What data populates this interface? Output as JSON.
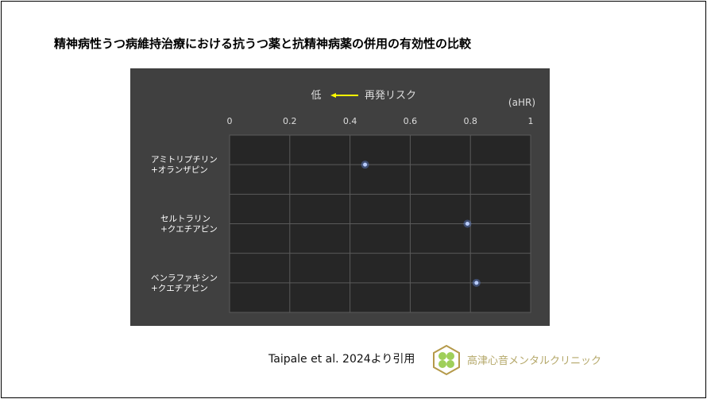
{
  "title": "精神病性うつ病維持治療における抗うつ薬と抗精神病薬の併用の有効性の比較",
  "citation": "Taipale et al. 2024より引用",
  "clinic_name": "高津心音メンタルクリニック",
  "chart_data": {
    "type": "scatter",
    "annotation_low": "低",
    "annotation_label": "再発リスク",
    "unit_label": "(aHR)",
    "xlim": [
      0,
      1
    ],
    "x_ticks": [
      "0",
      "0.2",
      "0.4",
      "0.6",
      "0.8",
      "1"
    ],
    "grid": true,
    "categories": [
      "アミトリプチリン\n+オランザピン",
      "セルトラリン\n+クエチアピン",
      "ベンラファキシン\n+クエチアピン"
    ],
    "values": [
      0.45,
      0.79,
      0.82
    ],
    "colors": {
      "point": "#6f9bff",
      "arrow": "#ffff00",
      "plot_bg": "#262626",
      "panel_bg": "#404040",
      "grid": "#5a5a5a"
    }
  }
}
